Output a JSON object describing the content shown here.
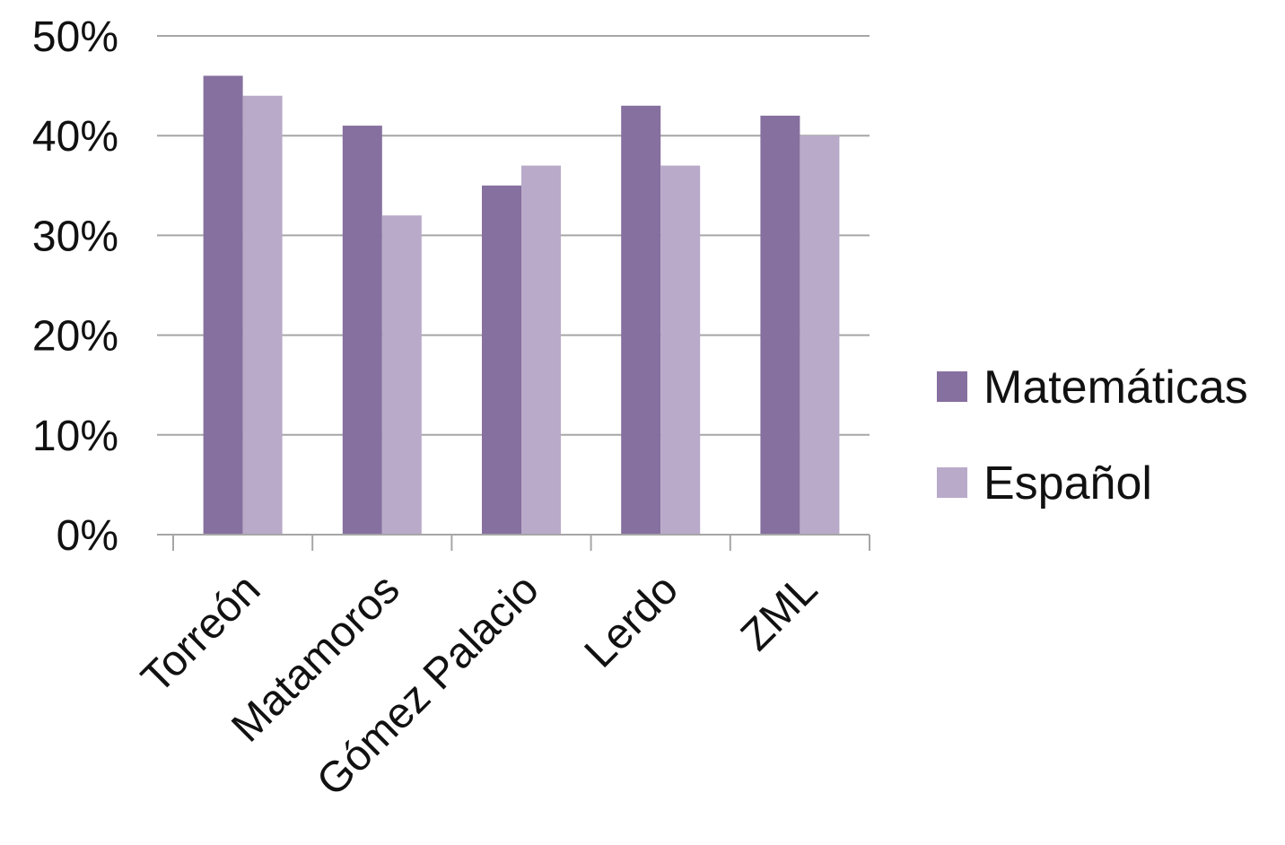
{
  "chart_data": {
    "type": "bar",
    "title": "",
    "xlabel": "",
    "ylabel": "",
    "categories": [
      "Torreón",
      "Matamoros",
      "Gómez Palacio",
      "Lerdo",
      "ZML"
    ],
    "series": [
      {
        "name": "Matemáticas",
        "values": [
          46,
          41,
          35,
          43,
          42
        ],
        "color": "#86709f"
      },
      {
        "name": "Español",
        "values": [
          44,
          32,
          37,
          37,
          40
        ],
        "color": "#b9aac9"
      }
    ],
    "ylim": [
      0,
      50
    ],
    "y_ticks": [
      {
        "value": 0,
        "label": "0%"
      },
      {
        "value": 10,
        "label": "10%"
      },
      {
        "value": 20,
        "label": "20%"
      },
      {
        "value": 30,
        "label": "30%"
      },
      {
        "value": 40,
        "label": "40%"
      },
      {
        "value": 50,
        "label": "50%"
      }
    ],
    "grid": true,
    "gridline_color": "#a6a6a6",
    "legend_position": "right"
  }
}
